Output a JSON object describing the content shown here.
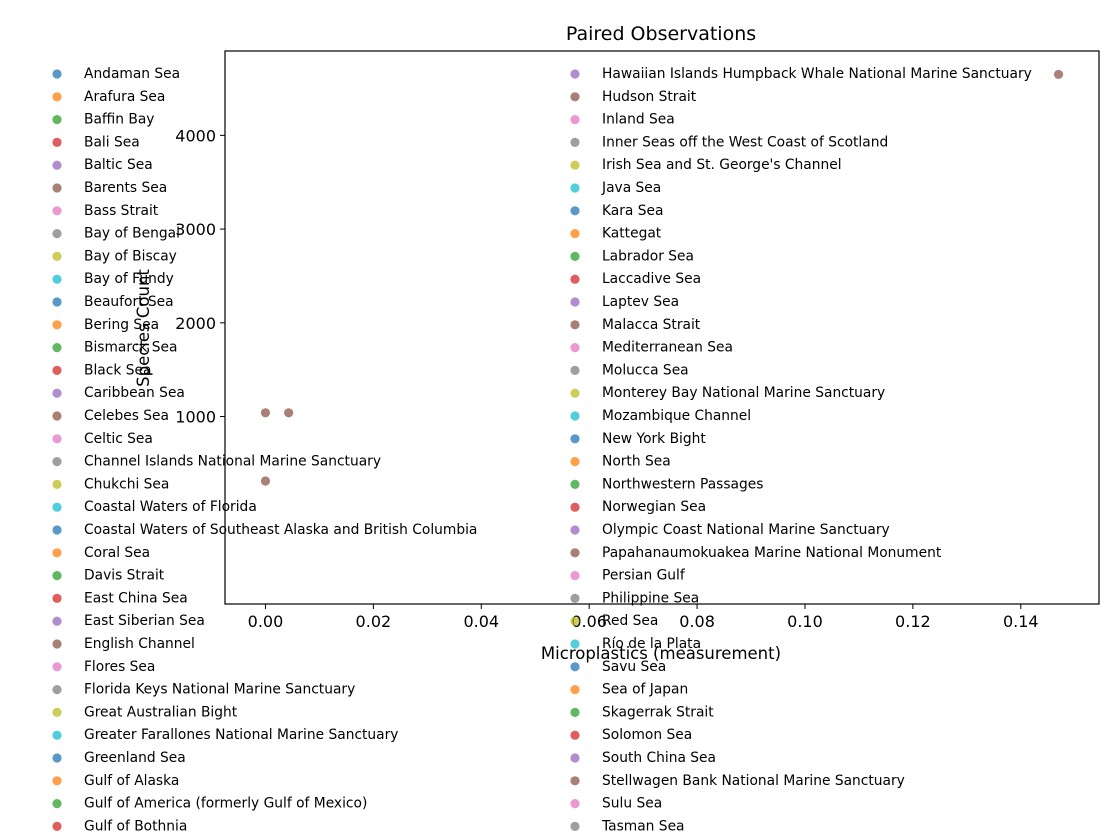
{
  "chart_data": {
    "type": "scatter",
    "title": "Paired Observations",
    "xlabel": "Microplastics (measurement)",
    "ylabel": "Species Count",
    "xlim": [
      -0.0075,
      0.1545
    ],
    "ylim": [
      -1000,
      4900
    ],
    "xticks": [
      "0.00",
      "0.02",
      "0.04",
      "0.06",
      "0.08",
      "0.10",
      "0.12",
      "0.14"
    ],
    "yticks": [
      "1000",
      "2000",
      "3000",
      "4000"
    ],
    "grid": false,
    "legend_placement": "left, two columns",
    "colors": [
      "#1f77b4",
      "#ff7f0e",
      "#2ca02c",
      "#d62728",
      "#9467bd",
      "#8c564b",
      "#e377c2",
      "#7f7f7f",
      "#bcbd22",
      "#17becf"
    ],
    "points": [
      {
        "x": 0.0,
        "y": 1040,
        "color": "#8c564b"
      },
      {
        "x": 0.0043,
        "y": 1040,
        "color": "#8c564b"
      },
      {
        "x": 0.0,
        "y": 312,
        "color": "#8c564b"
      },
      {
        "x": 0.147,
        "y": 4650,
        "color": "#8c564b"
      }
    ],
    "legend_col1": [
      "Andaman Sea",
      "Arafura Sea",
      "Baffin Bay",
      "Bali Sea",
      "Baltic Sea",
      "Barents Sea",
      "Bass Strait",
      "Bay of Bengal",
      "Bay of Biscay",
      "Bay of Fundy",
      "Beaufort Sea",
      "Bering Sea",
      "Bismarck Sea",
      "Black Sea",
      "Caribbean Sea",
      "Celebes Sea",
      "Celtic Sea",
      "Channel Islands National Marine Sanctuary",
      "Chukchi Sea",
      "Coastal Waters of Florida",
      "Coastal Waters of Southeast Alaska and British Columbia",
      "Coral Sea",
      "Davis Strait",
      "East China Sea",
      "East Siberian Sea",
      "English Channel",
      "Flores Sea",
      "Florida Keys National Marine Sanctuary",
      "Great Australian Bight",
      "Greater Farallones National Marine Sanctuary",
      "Greenland Sea",
      "Gulf of Alaska",
      "Gulf of America (formerly Gulf of Mexico)",
      "Gulf of Bothnia"
    ],
    "legend_col2": [
      "Hawaiian Islands Humpback Whale National Marine Sanctuary",
      "Hudson Strait",
      "Inland Sea",
      "Inner Seas off the West Coast of Scotland",
      "Irish Sea and St. George's Channel",
      "Java Sea",
      "Kara Sea",
      "Kattegat",
      "Labrador Sea",
      "Laccadive Sea",
      "Laptev Sea",
      "Malacca Strait",
      "Mediterranean Sea",
      "Molucca Sea",
      "Monterey Bay National Marine Sanctuary",
      "Mozambique Channel",
      "New York Bight",
      "North Sea",
      "Northwestern Passages",
      "Norwegian Sea",
      "Olympic Coast National Marine Sanctuary",
      "Papahanaumokuakea Marine National Monument",
      "Persian Gulf",
      "Philippine Sea",
      "Red Sea",
      "Río de la Plata",
      "Savu Sea",
      "Sea of Japan",
      "Skagerrak Strait",
      "Solomon Sea",
      "South China Sea",
      "Stellwagen Bank National Marine Sanctuary",
      "Sulu Sea",
      "Tasman Sea"
    ]
  }
}
